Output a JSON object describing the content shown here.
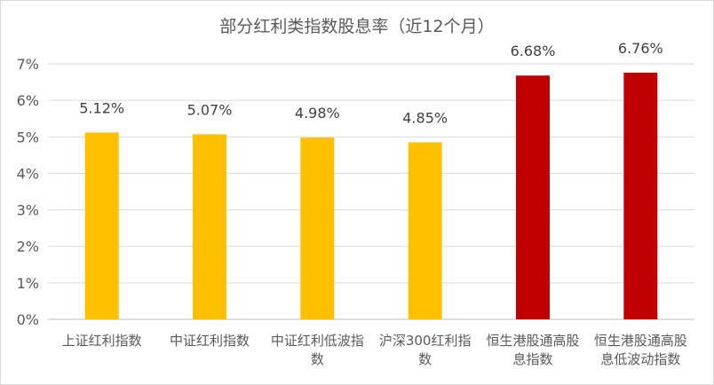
{
  "chart_data": {
    "type": "bar",
    "title": "部分红利类指数股息率（近12个月）",
    "categories": [
      [
        "上证红利指数"
      ],
      [
        "中证红利指数"
      ],
      [
        "中证红利低波指",
        "数"
      ],
      [
        "沪深300红利指",
        "数"
      ],
      [
        "恒生港股通高股",
        "息指数"
      ],
      [
        "恒生港股通高股",
        "息低波动指数"
      ]
    ],
    "values": [
      5.12,
      5.07,
      4.98,
      4.85,
      6.68,
      6.76
    ],
    "data_labels": [
      "5.12%",
      "5.07%",
      "4.98%",
      "4.85%",
      "6.68%",
      "6.76%"
    ],
    "bar_colors": [
      "#FFC000",
      "#FFC000",
      "#FFC000",
      "#FFC000",
      "#C00000",
      "#C00000"
    ],
    "ylim": [
      0,
      7
    ],
    "yticks": [
      0,
      1,
      2,
      3,
      4,
      5,
      6,
      7
    ],
    "ytick_labels": [
      "0%",
      "1%",
      "2%",
      "3%",
      "4%",
      "5%",
      "6%",
      "7%"
    ],
    "grid": true,
    "gridline_color": "#d9d9d9",
    "axis_color": "#bfbfbf"
  }
}
